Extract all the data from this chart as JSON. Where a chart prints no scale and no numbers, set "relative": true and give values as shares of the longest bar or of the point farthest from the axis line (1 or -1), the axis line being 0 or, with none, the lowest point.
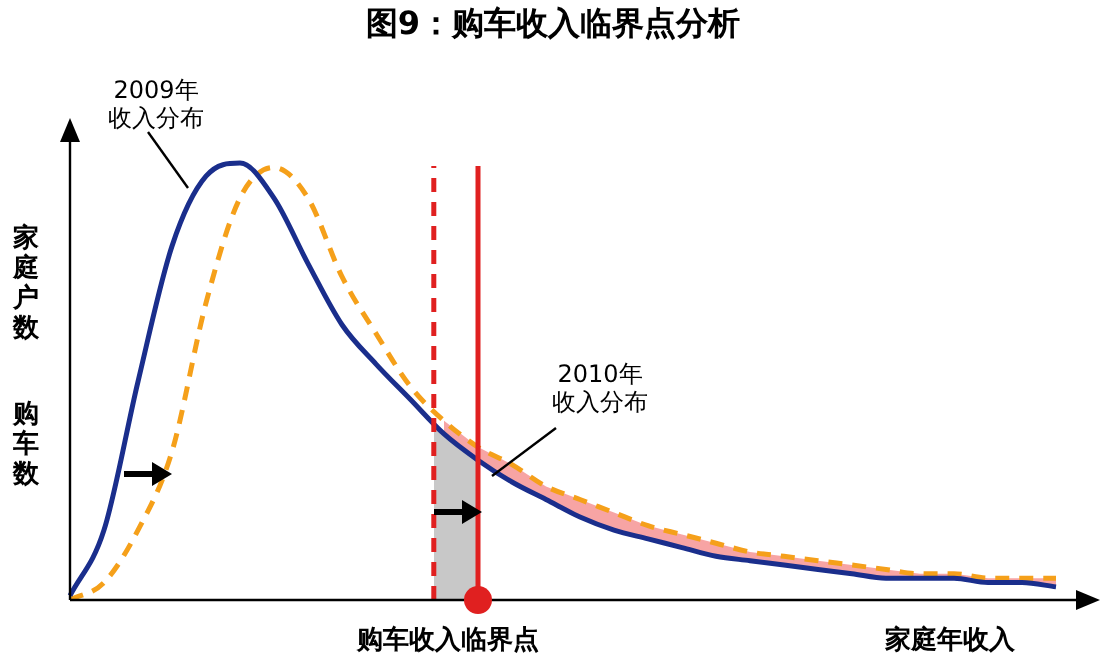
{
  "chart_data": {
    "type": "line",
    "title": "图9：购车收入临界点分析",
    "xlabel": "家庭年收入",
    "ylabel": "家庭户数",
    "relative": true,
    "marker": "none",
    "categories": [
      null,
      null,
      null,
      null,
      null,
      null,
      null,
      null,
      null,
      null,
      null,
      null,
      null,
      null,
      null,
      null,
      null,
      null,
      null,
      null,
      null,
      null,
      null,
      null,
      null,
      null,
      null,
      null,
      null,
      null
    ],
    "series": [
      {
        "name": "2009年收入分布",
        "color": "#1a2e8c",
        "line_style": "solid",
        "values": [
          0.01,
          0.16,
          0.5,
          0.81,
          0.97,
          1.0,
          0.92,
          0.77,
          0.63,
          0.54,
          0.46,
          0.38,
          0.32,
          0.27,
          0.23,
          0.19,
          0.16,
          0.14,
          0.12,
          0.1,
          0.09,
          0.08,
          0.07,
          0.06,
          0.05,
          0.05,
          0.05,
          0.04,
          0.04,
          0.03
        ]
      },
      {
        "name": "2010年收入分布",
        "color": "#f5a01a",
        "line_style": "dashed",
        "values": [
          0,
          0.04,
          0.16,
          0.34,
          0.68,
          0.92,
          0.99,
          0.92,
          0.74,
          0.61,
          0.49,
          0.41,
          0.35,
          0.31,
          0.26,
          0.23,
          0.2,
          0.17,
          0.15,
          0.13,
          0.11,
          0.1,
          0.09,
          0.08,
          0.07,
          0.06,
          0.06,
          0.05,
          0.05,
          0.05
        ],
        "lower": [
          null,
          null,
          null,
          null,
          null,
          null,
          null,
          null,
          null,
          null,
          null,
          0.38,
          0.32,
          0.27,
          0.23,
          0.19,
          0.16,
          0.14,
          0.12,
          0.1,
          0.09,
          0.08,
          0.07,
          0.06,
          0.05,
          0.05,
          0.05,
          0.04,
          0.04,
          0.03
        ],
        "upper": [
          null,
          null,
          null,
          null,
          null,
          null,
          null,
          null,
          null,
          null,
          null,
          0.41,
          0.35,
          0.31,
          0.26,
          0.23,
          0.2,
          0.17,
          0.15,
          0.13,
          0.11,
          0.1,
          0.09,
          0.08,
          0.07,
          0.06,
          0.06,
          0.05,
          0.05,
          0.05
        ]
      }
    ],
    "annotations": [
      "购车数",
      "购车收入临界点"
    ]
  }
}
